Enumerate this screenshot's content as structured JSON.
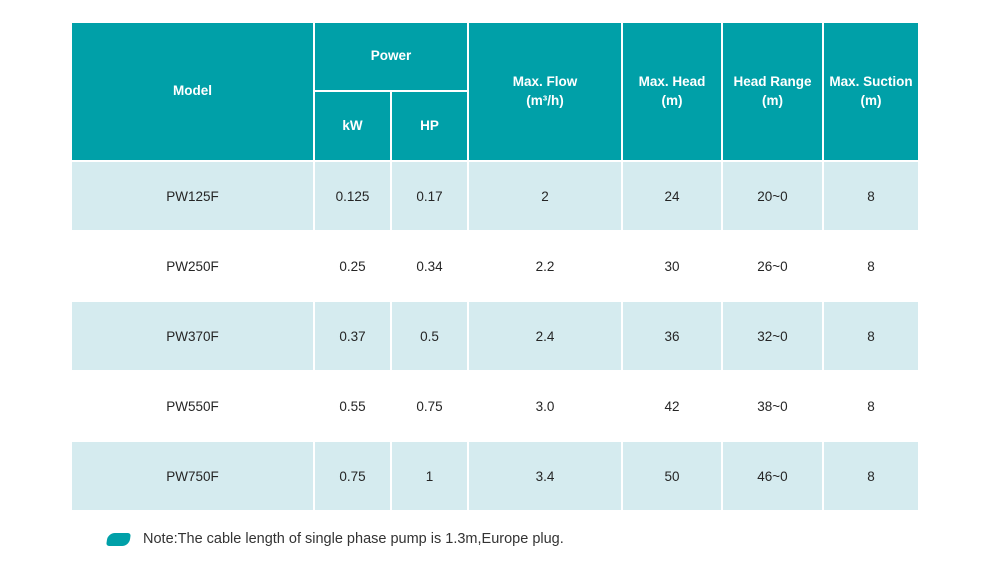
{
  "colors": {
    "header_bg": "#00A0A8",
    "row_alt_bg": "#D5EBEF",
    "body_text": "#252525",
    "header_text": "#FFFFFF",
    "note_text": "#333333"
  },
  "table": {
    "header": {
      "model": "Model",
      "power": "Power",
      "kw": "kW",
      "hp": "HP",
      "max_flow": {
        "label": "Max. Flow",
        "unit": "(m³/h)"
      },
      "max_head": {
        "label": "Max. Head",
        "unit": "(m)"
      },
      "head_range": {
        "label": "Head Range",
        "unit": "(m)"
      },
      "max_suction": {
        "label": "Max. Suction",
        "unit": "(m)"
      }
    },
    "row_keys": [
      "model",
      "kw",
      "hp",
      "max_flow",
      "max_head",
      "head_range",
      "max_suction"
    ],
    "rows": [
      {
        "model": "PW125F",
        "kw": "0.125",
        "hp": "0.17",
        "max_flow": "2",
        "max_head": "24",
        "head_range": "20~0",
        "max_suction": "8"
      },
      {
        "model": "PW250F",
        "kw": "0.25",
        "hp": "0.34",
        "max_flow": "2.2",
        "max_head": "30",
        "head_range": "26~0",
        "max_suction": "8"
      },
      {
        "model": "PW370F",
        "kw": "0.37",
        "hp": "0.5",
        "max_flow": "2.4",
        "max_head": "36",
        "head_range": "32~0",
        "max_suction": "8"
      },
      {
        "model": "PW550F",
        "kw": "0.55",
        "hp": "0.75",
        "max_flow": "3.0",
        "max_head": "42",
        "head_range": "38~0",
        "max_suction": "8"
      },
      {
        "model": "PW750F",
        "kw": "0.75",
        "hp": "1",
        "max_flow": "3.4",
        "max_head": "50",
        "head_range": "46~0",
        "max_suction": "8"
      }
    ]
  },
  "note": {
    "icon": "note-marker-icon",
    "text": "Note:The cable length of single phase pump is 1.3m,Europe plug."
  }
}
